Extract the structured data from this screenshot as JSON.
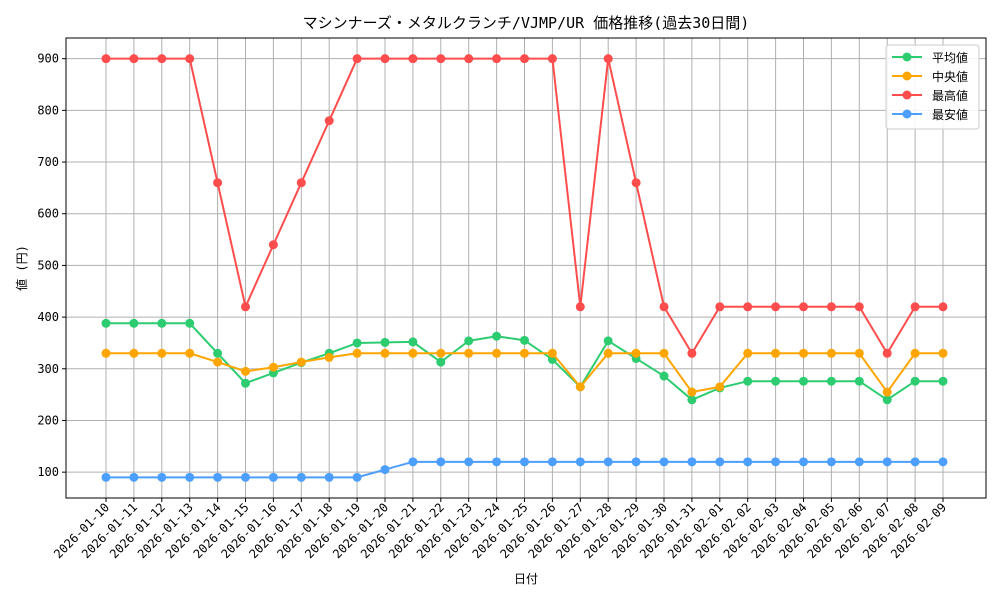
{
  "chart_data": {
    "type": "line",
    "title": "マシンナーズ・メタルクランチ/VJMP/UR 価格推移(過去30日間)",
    "xlabel": "日付",
    "ylabel": "値 (円)",
    "ylim": [
      50,
      940
    ],
    "yticks": [
      100,
      200,
      300,
      400,
      500,
      600,
      700,
      800,
      900
    ],
    "grid": true,
    "legend_position": "top-right",
    "x": [
      "2026-01-10",
      "2026-01-11",
      "2026-01-12",
      "2026-01-13",
      "2026-01-14",
      "2026-01-15",
      "2026-01-16",
      "2026-01-17",
      "2026-01-18",
      "2026-01-19",
      "2026-01-20",
      "2026-01-21",
      "2026-01-22",
      "2026-01-23",
      "2026-01-24",
      "2026-01-25",
      "2026-01-26",
      "2026-01-27",
      "2026-01-28",
      "2026-01-29",
      "2026-01-30",
      "2026-01-31",
      "2026-02-01",
      "2026-02-02",
      "2026-02-03",
      "2026-02-04",
      "2026-02-05",
      "2026-02-06",
      "2026-02-07",
      "2026-02-08",
      "2026-02-09"
    ],
    "series": [
      {
        "name": "平均値",
        "color": "#2ecc71",
        "values": [
          388,
          388,
          388,
          388,
          330,
          272,
          292,
          312,
          330,
          350,
          351,
          352,
          313,
          354,
          363,
          355,
          318,
          265,
          354,
          320,
          286,
          240,
          263,
          276,
          276,
          276,
          276,
          276,
          240,
          276,
          276
        ]
      },
      {
        "name": "中央値",
        "color": "#ffa500",
        "values": [
          330,
          330,
          330,
          330,
          313,
          295,
          303,
          313,
          322,
          330,
          330,
          330,
          330,
          330,
          330,
          330,
          330,
          265,
          330,
          330,
          330,
          255,
          265,
          330,
          330,
          330,
          330,
          330,
          255,
          330,
          330
        ]
      },
      {
        "name": "最高値",
        "color": "#ff4d4d",
        "values": [
          900,
          900,
          900,
          900,
          660,
          420,
          540,
          660,
          780,
          900,
          900,
          900,
          900,
          900,
          900,
          900,
          900,
          420,
          900,
          660,
          420,
          330,
          420,
          420,
          420,
          420,
          420,
          420,
          330,
          420,
          420
        ]
      },
      {
        "name": "最安値",
        "color": "#4d9fff",
        "values": [
          90,
          90,
          90,
          90,
          90,
          90,
          90,
          90,
          90,
          90,
          105,
          120,
          120,
          120,
          120,
          120,
          120,
          120,
          120,
          120,
          120,
          120,
          120,
          120,
          120,
          120,
          120,
          120,
          120,
          120,
          120
        ]
      }
    ]
  }
}
